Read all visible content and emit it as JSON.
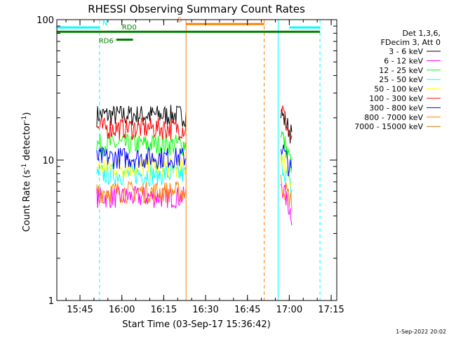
{
  "chart_data": {
    "type": "line",
    "title": "RHESSI Observing Summary Count Rates",
    "xlabel": "Start Time (03-Sep-17 15:36:42)",
    "ylabel_main": "Count Rate (s",
    "ylabel_sup1": "-1",
    "ylabel_mid": " detector",
    "ylabel_sup2": "-1",
    "ylabel_end": ")",
    "yscale": "log",
    "ylim": [
      1,
      100
    ],
    "xlim_minutes": [
      "15:36:42",
      "17:17:00"
    ],
    "x_ticks": [
      "15:45",
      "16:00",
      "16:15",
      "16:30",
      "16:45",
      "17:00",
      "17:15"
    ],
    "y_ticks": [
      "1",
      "10",
      "100"
    ],
    "legend_header": [
      "Det 1,3,6,",
      "FDecim 3, Att 0"
    ],
    "series": [
      {
        "name": "3 - 6 keV",
        "color": "#000000",
        "segments": [
          {
            "from": "15:51",
            "to": "16:23",
            "level": 21
          },
          {
            "from": "16:57",
            "to": "17:01",
            "level": 22,
            "end_level": 15
          }
        ]
      },
      {
        "name": "6 - 12 keV",
        "color": "#ff00ff",
        "segments": [
          {
            "from": "15:51",
            "to": "16:23",
            "level": 5.5
          },
          {
            "from": "16:57",
            "to": "17:01",
            "level": 7,
            "end_level": 4
          }
        ]
      },
      {
        "name": "12 - 25 keV",
        "color": "#00ff00",
        "segments": [
          {
            "from": "15:51",
            "to": "16:23",
            "level": 13
          },
          {
            "from": "16:57",
            "to": "17:01",
            "level": 16,
            "end_level": 9
          }
        ]
      },
      {
        "name": "25 - 50 keV",
        "color": "#00ffff",
        "segments": [
          {
            "from": "15:51",
            "to": "16:23",
            "level": 8
          },
          {
            "from": "16:57",
            "to": "17:01",
            "level": 10,
            "end_level": 6
          }
        ]
      },
      {
        "name": "50 - 100 keV",
        "color": "#ffff00",
        "segments": [
          {
            "from": "15:51",
            "to": "16:23",
            "level": 9
          },
          {
            "from": "16:57",
            "to": "17:01",
            "level": 11,
            "end_level": 7
          }
        ]
      },
      {
        "name": "100 - 300 keV",
        "color": "#ff0000",
        "segments": [
          {
            "from": "15:51",
            "to": "16:23",
            "level": 17
          },
          {
            "from": "16:57",
            "to": "17:01",
            "level": 25,
            "end_level": 13
          }
        ]
      },
      {
        "name": "300 - 800 keV",
        "color": "#0000ff",
        "segments": [
          {
            "from": "15:51",
            "to": "16:23",
            "level": 10.5
          },
          {
            "from": "16:57",
            "to": "17:01",
            "level": 13,
            "end_level": 8
          }
        ]
      },
      {
        "name": "800 - 7000 keV",
        "color": "#ff8000",
        "segments": [
          {
            "from": "15:51",
            "to": "16:23",
            "level": 6
          },
          {
            "from": "16:57",
            "to": "17:01",
            "level": 7,
            "end_level": 5
          }
        ]
      },
      {
        "name": "7000 - 15000 keV",
        "color": "#c08000",
        "segments": []
      }
    ],
    "flags": [
      {
        "label": "N",
        "color": "#00ffff",
        "level": 88,
        "segments": [
          [
            "15:36:42",
            "15:52"
          ],
          [
            "17:00",
            "17:11"
          ]
        ]
      },
      {
        "label": "RD0",
        "color": "#008000",
        "level": 82,
        "segments": [
          [
            "15:36:42",
            "17:11"
          ]
        ]
      },
      {
        "label": "RD6",
        "color": "#008000",
        "level": 72,
        "segments": [
          [
            "15:58",
            "16:04"
          ]
        ]
      },
      {
        "label": "S",
        "color": "#ff8000",
        "level": 93,
        "segments": [
          [
            "16:23",
            "16:51"
          ]
        ]
      }
    ],
    "vlines": [
      {
        "time": "15:36:42",
        "color": "#00ffff",
        "style": "solid"
      },
      {
        "time": "15:52",
        "color": "#00ffff",
        "style": "dashed"
      },
      {
        "time": "16:23",
        "color": "#ff8000",
        "style": "solid"
      },
      {
        "time": "16:51",
        "color": "#ff8000",
        "style": "dashed"
      },
      {
        "time": "16:56",
        "color": "#00ffff",
        "style": "solid"
      },
      {
        "time": "17:11",
        "color": "#00ffff",
        "style": "dashed"
      }
    ],
    "timestamp": "1-Sep-2022 20:02"
  },
  "colors": {
    "background": "#ffffff",
    "axis": "#000000"
  }
}
